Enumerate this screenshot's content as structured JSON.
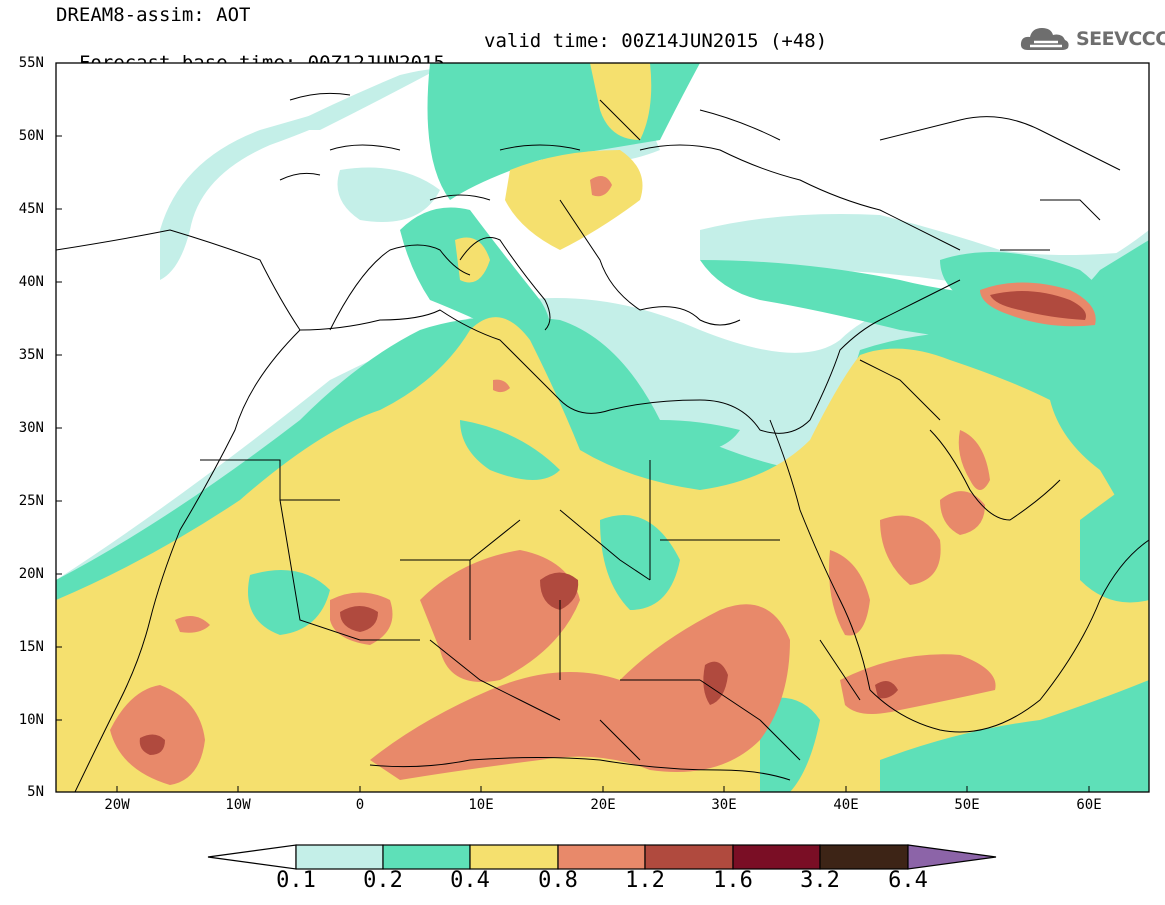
{
  "header": {
    "line1": "DREAM8-assim: AOT",
    "base": "Forecast base time: 00Z12JUN2015",
    "valid": "valid time: 00Z14JUN2015 (+48)"
  },
  "logo": {
    "text": "SEEVCCC",
    "icon": "cloud-icon"
  },
  "map": {
    "projection": "lat-lon",
    "lat_range": [
      5,
      55
    ],
    "lon_range": [
      -25,
      65
    ],
    "lat_labels": [
      "55N",
      "50N",
      "45N",
      "40N",
      "35N",
      "30N",
      "25N",
      "20N",
      "15N",
      "10N",
      "5N"
    ],
    "lon_labels": [
      "20W",
      "10W",
      "0",
      "10E",
      "20E",
      "30E",
      "40E",
      "50E",
      "60E"
    ]
  },
  "colorbar": {
    "levels": [
      "0.1",
      "0.2",
      "0.4",
      "0.8",
      "1.2",
      "1.6",
      "3.2",
      "6.4"
    ],
    "colors": [
      "#ffffff",
      "#c4efe8",
      "#5ee0b8",
      "#f5e06e",
      "#e8896a",
      "#b04a3e",
      "#7a0e25",
      "#3d2416",
      "#8c64a8"
    ]
  }
}
